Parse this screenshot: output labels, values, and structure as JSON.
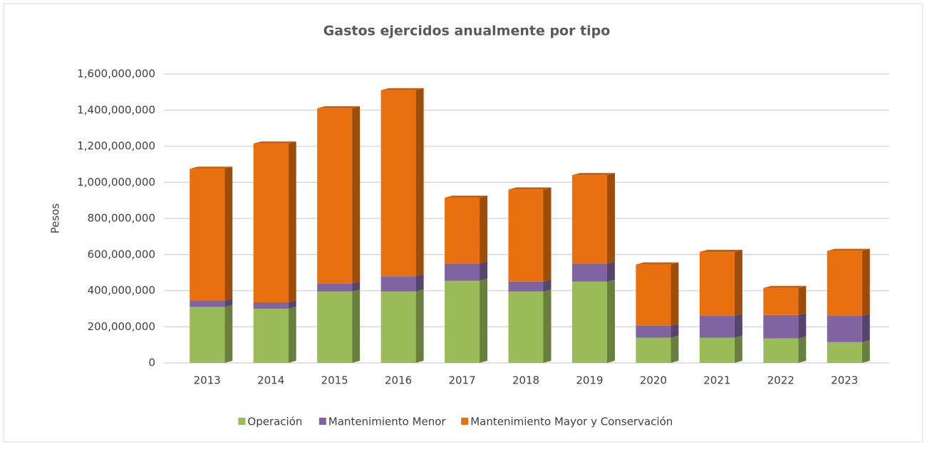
{
  "chart_data": {
    "type": "bar",
    "stacked": true,
    "title": "Gastos ejercidos anualmente por tipo",
    "y_label": "Pesos",
    "categories": [
      "2013",
      "2014",
      "2015",
      "2016",
      "2017",
      "2018",
      "2019",
      "2020",
      "2021",
      "2022",
      "2023"
    ],
    "series": [
      {
        "name": "Operación",
        "color": "#9bbb59",
        "values": [
          310000000,
          300000000,
          395000000,
          395000000,
          455000000,
          395000000,
          450000000,
          140000000,
          140000000,
          135000000,
          115000000
        ]
      },
      {
        "name": "Mantenimiento Menor",
        "color": "#8064a2",
        "values": [
          35000000,
          35000000,
          45000000,
          85000000,
          95000000,
          55000000,
          100000000,
          65000000,
          120000000,
          130000000,
          145000000
        ]
      },
      {
        "name": "Mantenimiento Mayor y Conservación",
        "color": "#e8700f",
        "values": [
          730000000,
          880000000,
          970000000,
          1030000000,
          365000000,
          510000000,
          490000000,
          340000000,
          355000000,
          150000000,
          360000000
        ]
      }
    ],
    "ylim": [
      0,
      1600000000
    ],
    "yticks": [
      0,
      {
        "value": 200000000,
        "label": "200,000,000"
      },
      {
        "value": 400000000,
        "label": "400,000,000"
      },
      {
        "value": 600000000,
        "label": "600,000,000"
      },
      {
        "value": 800000000,
        "label": "800,000,000"
      },
      {
        "value": 1000000000,
        "label": "1,000,000,000"
      },
      {
        "value": 1200000000,
        "label": "1,200,000,000"
      },
      {
        "value": 1400000000,
        "label": "1,400,000,000"
      },
      {
        "value": 1600000000,
        "label": "1,600,000,000"
      }
    ],
    "grid": true,
    "legend": "bottom"
  }
}
